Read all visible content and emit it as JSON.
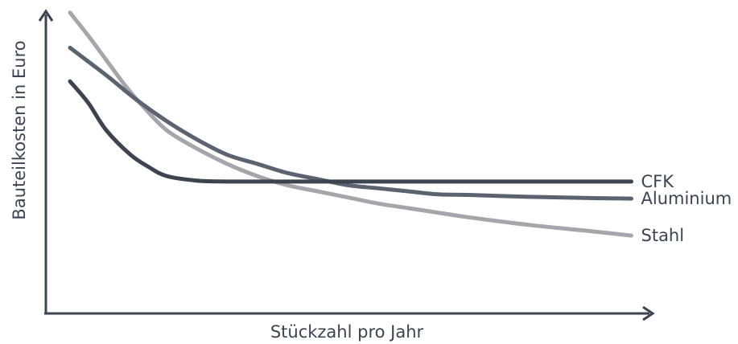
{
  "chart_data": {
    "type": "line",
    "title": "",
    "xlabel": "Stückzahl pro Jahr",
    "ylabel": "Bauteilkosten in Euro",
    "xlim": [
      0,
      1
    ],
    "ylim": [
      0,
      1
    ],
    "grid": false,
    "legend": "line-end labels (right)",
    "series": [
      {
        "name": "CFK",
        "color": "#3d4450",
        "x": [
          0.04,
          0.07,
          0.1,
          0.14,
          0.17,
          0.2,
          0.25,
          0.3,
          0.4,
          0.5,
          0.6,
          0.7,
          0.8,
          0.9,
          0.97
        ],
        "y": [
          0.76,
          0.69,
          0.6,
          0.52,
          0.48,
          0.45,
          0.435,
          0.432,
          0.432,
          0.432,
          0.432,
          0.432,
          0.432,
          0.432,
          0.432
        ]
      },
      {
        "name": "Aluminium",
        "color": "#5c6370",
        "x": [
          0.04,
          0.1,
          0.15,
          0.2,
          0.25,
          0.3,
          0.35,
          0.4,
          0.45,
          0.5,
          0.55,
          0.6,
          0.65,
          0.7,
          0.8,
          0.9,
          0.97
        ],
        "y": [
          0.87,
          0.78,
          0.7,
          0.63,
          0.57,
          0.52,
          0.49,
          0.46,
          0.44,
          0.42,
          0.41,
          0.4,
          0.39,
          0.388,
          0.382,
          0.378,
          0.376
        ]
      },
      {
        "name": "Stahl",
        "color": "#a5a5ab",
        "x": [
          0.04,
          0.07,
          0.1,
          0.13,
          0.16,
          0.2,
          0.25,
          0.3,
          0.35,
          0.4,
          0.45,
          0.5,
          0.55,
          0.6,
          0.65,
          0.7,
          0.8,
          0.9,
          0.97
        ],
        "y": [
          0.985,
          0.91,
          0.83,
          0.75,
          0.68,
          0.6,
          0.54,
          0.49,
          0.45,
          0.42,
          0.4,
          0.38,
          0.36,
          0.345,
          0.33,
          0.315,
          0.29,
          0.27,
          0.255
        ]
      }
    ]
  }
}
